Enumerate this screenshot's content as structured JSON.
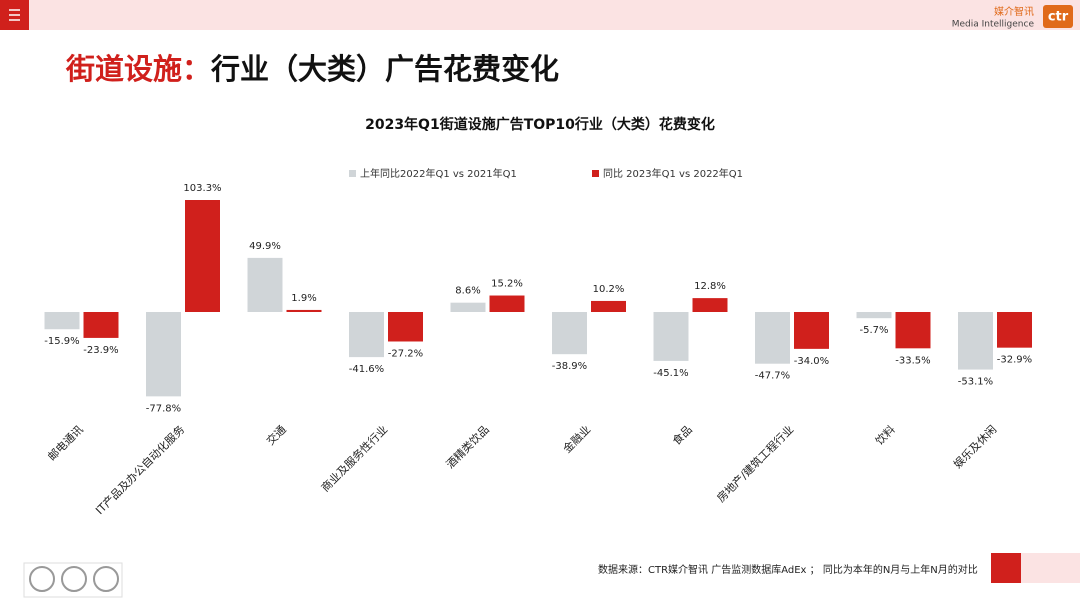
{
  "header": {
    "logo_cn": "媒介智讯",
    "logo_en": "Media Intelligence",
    "logo_mark": "ctr"
  },
  "slide_title": {
    "highlight": "街道设施：",
    "rest": "行业（大类）广告花费变化"
  },
  "chart_data": {
    "type": "bar",
    "title": "2023年Q1街道设施广告TOP10行业（大类）花费变化",
    "categories": [
      "邮电通讯",
      "IT产品及办公自动化服务",
      "交通",
      "商业及服务性行业",
      "酒精类饮品",
      "金融业",
      "食品",
      "房地产/建筑工程行业",
      "饮料",
      "娱乐及休闲"
    ],
    "series": [
      {
        "name": "上年同比2022年Q1  vs  2021年Q1",
        "color": "#d0d5d8",
        "values": [
          -15.9,
          -77.8,
          49.9,
          -41.6,
          8.6,
          -38.9,
          -45.1,
          -47.7,
          -5.7,
          -53.1
        ],
        "value_labels": [
          "-15.9%",
          "-77.8%",
          "49.9%",
          "-41.6%",
          "8.6%",
          "-38.9%",
          "-45.1%",
          "-47.7%",
          "-5.7%",
          "-53.1%"
        ]
      },
      {
        "name": "同比 2023年Q1  vs  2022年Q1",
        "color": "#d0201c",
        "values": [
          -23.9,
          103.3,
          1.9,
          -27.2,
          15.2,
          10.2,
          12.8,
          -34.0,
          -33.5,
          -32.9
        ],
        "value_labels": [
          "-23.9%",
          "103.3%",
          "1.9%",
          "-27.2%",
          "15.2%",
          "10.2%",
          "12.8%",
          "-34.0%",
          "-33.5%",
          "-32.9%"
        ]
      }
    ]
  },
  "footer": {
    "source": "数据来源：CTR媒介智讯 广告监测数据库AdEx ；  同比为本年的N月与上年N月的对比"
  }
}
